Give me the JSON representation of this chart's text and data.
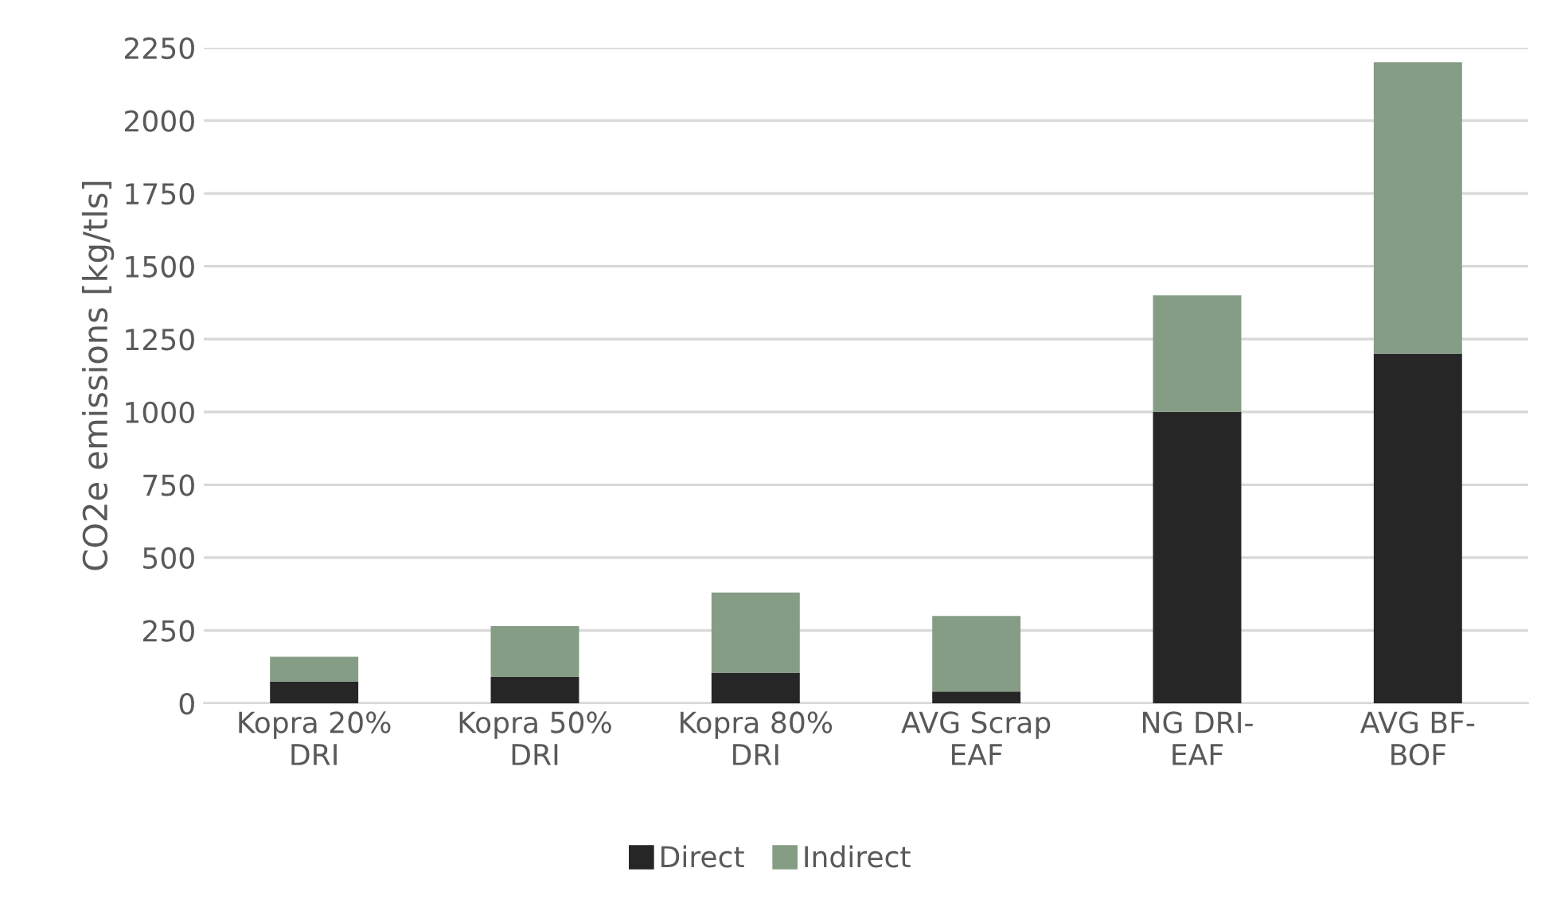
{
  "chart_data": {
    "type": "bar",
    "stacked": true,
    "ylabel": "CO2e emissions [kg/tls]",
    "categories": [
      "Kopra 20%\nDRI",
      "Kopra 50%\nDRI",
      "Kopra 80%\nDRI",
      "AVG Scrap\nEAF",
      "NG DRI-\nEAF",
      "AVG BF-\nBOF"
    ],
    "series": [
      {
        "name": "Direct",
        "color": "#262626",
        "values": [
          75,
          90,
          105,
          40,
          1000,
          1200
        ]
      },
      {
        "name": "Indirect",
        "color": "#869d85",
        "values": [
          85,
          175,
          275,
          260,
          400,
          1000
        ]
      }
    ],
    "ylim": [
      0,
      2250
    ],
    "yticks": [
      0,
      250,
      500,
      750,
      1000,
      1250,
      1500,
      1750,
      2000,
      2250
    ],
    "grid": "y",
    "legend": "bottom"
  }
}
